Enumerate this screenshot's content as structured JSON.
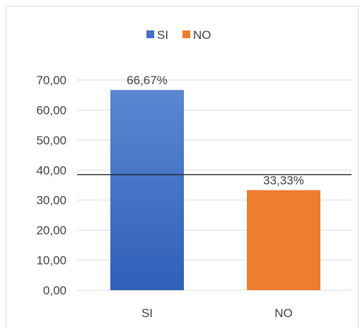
{
  "chart_data": {
    "type": "bar",
    "categories": [
      "SI",
      "NO"
    ],
    "values": [
      66.67,
      33.33
    ],
    "data_labels": [
      "66,67%",
      "33,33%"
    ],
    "ylim": [
      0,
      70
    ],
    "yticks": [
      "0,00",
      "10,00",
      "20,00",
      "30,00",
      "40,00",
      "50,00",
      "60,00",
      "70,00"
    ],
    "legend": [
      {
        "name": "SI",
        "color": "#4472C4"
      },
      {
        "name": "NO",
        "color": "#ED7D31"
      }
    ],
    "legend_position": "top",
    "grid": true,
    "reference_line_value": 38.5,
    "colors": {
      "si": "#4472C4",
      "no": "#ED7D31",
      "grid": "#d9d9d9",
      "reference_line": "#262626"
    }
  }
}
